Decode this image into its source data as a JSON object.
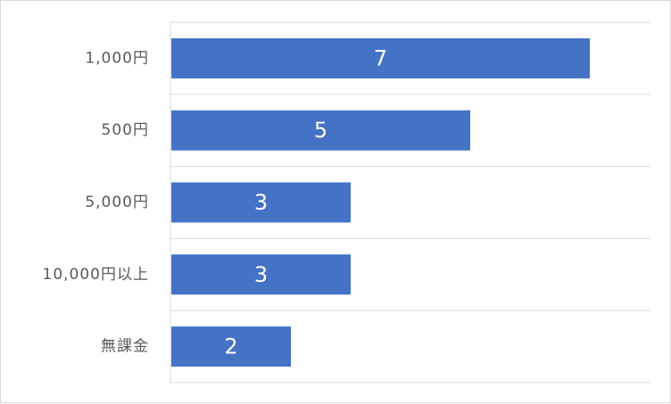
{
  "chart_data": {
    "type": "bar",
    "orientation": "horizontal",
    "categories": [
      "1,000円",
      "500円",
      "5,000円",
      "10,000円以上",
      "無課金"
    ],
    "values": [
      7,
      5,
      3,
      3,
      2
    ],
    "xlim": [
      0,
      8
    ],
    "grid": "horizontal category separators",
    "legend": "none",
    "bar_color": "#4472C4",
    "label_color": "#FFFFFF"
  }
}
